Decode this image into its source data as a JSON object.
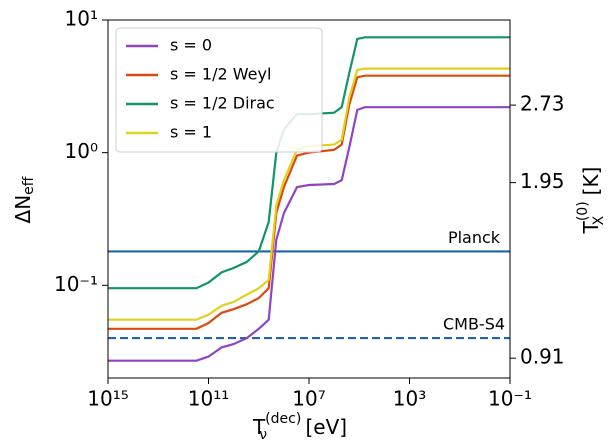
{
  "chart_data": {
    "type": "line",
    "xlabel": {
      "main": "T",
      "sup": "(dec)",
      "sub": "ν",
      "unit": " [eV]"
    },
    "ylabel": {
      "main": "ΔN",
      "sub": "eff"
    },
    "y2label": {
      "main": "T",
      "sup": "(0)",
      "sub": "X",
      "unit": " [K]"
    },
    "xlog": true,
    "ylog": true,
    "y2log": true,
    "xlim": [
      1000000000000000.0,
      0.1
    ],
    "xticks": [
      {
        "value": 1000000000000000.0,
        "label": "10¹⁵"
      },
      {
        "value": 100000000000.0,
        "label": "10¹¹"
      },
      {
        "value": 10000000.0,
        "label": "10⁷"
      },
      {
        "value": 1000,
        "label": "10³"
      },
      {
        "value": 0.1,
        "label": "10⁻¹"
      }
    ],
    "ylim": [
      0.02,
      10
    ],
    "yticks": [
      {
        "value": 0.1,
        "label": "10⁻¹"
      },
      {
        "value": 1,
        "label": "10⁰"
      },
      {
        "value": 10,
        "label": "10¹"
      }
    ],
    "y2lim": [
      0.835,
      3.95
    ],
    "y2ticks": [
      0.91,
      1.95,
      2.73
    ],
    "y2color": "#8e44c4",
    "legend": "upper left",
    "x": [
      1000000000000000.0,
      300000000000.0,
      100000000000.0,
      30000000000.0,
      10000000000.0,
      3000000000.0,
      1000000000.0,
      400000000.0,
      200000000.0,
      100000000.0,
      30000000.0,
      10000000.0,
      1000000.0,
      500000.0,
      250000.0,
      120000.0,
      60000.0,
      10000.0,
      0.1
    ],
    "series": [
      {
        "name": "s = 0",
        "color": "#8e44c4",
        "values": [
          0.027,
          0.027,
          0.029,
          0.034,
          0.036,
          0.04,
          0.047,
          0.055,
          0.22,
          0.35,
          0.55,
          0.57,
          0.58,
          0.62,
          1.1,
          2.1,
          2.2,
          2.2,
          2.2
        ]
      },
      {
        "name": "s = 1/2 Weyl",
        "color": "#dd4a10",
        "values": [
          0.047,
          0.047,
          0.052,
          0.062,
          0.066,
          0.072,
          0.08,
          0.095,
          0.35,
          0.55,
          0.95,
          1.0,
          1.05,
          1.15,
          2.3,
          3.7,
          3.8,
          3.8,
          3.8
        ]
      },
      {
        "name": "s = 1/2 Dirac",
        "color": "#12936a",
        "values": [
          0.095,
          0.095,
          0.105,
          0.125,
          0.135,
          0.15,
          0.18,
          0.3,
          1.0,
          1.5,
          1.95,
          1.95,
          2.0,
          2.2,
          4.0,
          7.2,
          7.4,
          7.4,
          7.4
        ]
      },
      {
        "name": "s = 1",
        "color": "#e0d020",
        "values": [
          0.055,
          0.055,
          0.06,
          0.07,
          0.075,
          0.085,
          0.095,
          0.11,
          0.4,
          0.62,
          1.05,
          1.12,
          1.15,
          1.25,
          2.6,
          4.2,
          4.3,
          4.3,
          4.3
        ]
      }
    ],
    "hlines": [
      {
        "label": "Planck",
        "value": 0.18,
        "color": "#1f64a8",
        "dashed": false
      },
      {
        "label": "CMB-S4",
        "value": 0.04,
        "color": "#1f64a8",
        "dashed": true
      }
    ]
  }
}
